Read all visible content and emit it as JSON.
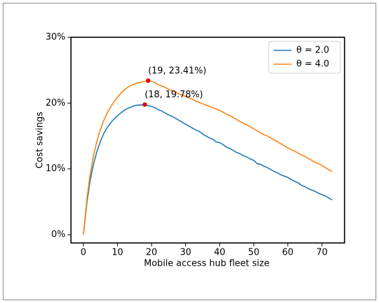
{
  "chart_data": {
    "type": "line",
    "x_label": "Mobile access hub fleet size",
    "y_label": "Cost savings",
    "x": [
      0,
      1,
      2,
      3,
      4,
      5,
      6,
      7,
      8,
      9,
      10,
      11,
      12,
      13,
      14,
      15,
      16,
      17,
      18,
      19,
      20,
      21,
      22,
      23,
      24,
      25,
      26,
      27,
      28,
      29,
      30,
      31,
      32,
      33,
      34,
      35,
      36,
      37,
      38,
      39,
      40,
      41,
      42,
      43,
      44,
      45,
      46,
      47,
      48,
      49,
      50,
      51,
      52,
      53,
      54,
      55,
      56,
      57,
      58,
      59,
      60,
      61,
      62,
      63,
      64,
      65,
      66,
      67,
      68,
      69,
      70,
      71,
      72,
      73
    ],
    "series": [
      {
        "name": "θ = 2.0",
        "color": "#1f77b4",
        "values": [
          0,
          4.8,
          8.3,
          10.8,
          12.7,
          14.2,
          15.4,
          16.3,
          17.0,
          17.6,
          18.1,
          18.5,
          18.9,
          19.2,
          19.4,
          19.6,
          19.7,
          19.7,
          19.78,
          19.6,
          19.5,
          19.3,
          19.0,
          18.8,
          18.5,
          18.2,
          18.0,
          17.7,
          17.4,
          17.1,
          16.8,
          16.5,
          16.2,
          15.9,
          15.7,
          15.3,
          15.0,
          14.7,
          14.5,
          14.1,
          14.0,
          13.7,
          13.3,
          13.1,
          12.8,
          12.5,
          12.3,
          12.0,
          11.8,
          11.5,
          11.3,
          10.8,
          10.7,
          10.4,
          10.2,
          9.9,
          9.6,
          9.4,
          9.1,
          8.9,
          8.7,
          8.4,
          8.1,
          7.9,
          7.5,
          7.3,
          7.0,
          6.8,
          6.6,
          6.3,
          6.1,
          5.9,
          5.6,
          5.3
        ]
      },
      {
        "name": "θ = 4.0",
        "color": "#ff7f0e",
        "values": [
          0,
          5.3,
          9.2,
          12.1,
          14.3,
          16.0,
          17.4,
          18.5,
          19.4,
          20.2,
          20.9,
          21.5,
          22.0,
          22.4,
          22.7,
          22.9,
          23.1,
          23.2,
          23.3,
          23.41,
          23.3,
          23.1,
          22.8,
          22.6,
          22.4,
          22.1,
          21.9,
          21.7,
          21.4,
          21.2,
          21.0,
          20.8,
          20.6,
          20.3,
          20.1,
          19.9,
          19.7,
          19.5,
          19.3,
          19.1,
          18.9,
          18.6,
          18.3,
          18.1,
          17.8,
          17.5,
          17.2,
          16.9,
          16.7,
          16.4,
          16.1,
          15.8,
          15.5,
          15.2,
          15.0,
          14.7,
          14.4,
          14.1,
          13.8,
          13.5,
          13.2,
          12.9,
          12.7,
          12.4,
          12.1,
          11.9,
          11.6,
          11.3,
          11.0,
          10.8,
          10.5,
          10.2,
          9.9,
          9.6
        ]
      }
    ],
    "annotations": [
      {
        "text": "(19, 23.41%)",
        "x": 19,
        "y": 23.41,
        "color": "#e00000"
      },
      {
        "text": "(18, 19.78%)",
        "x": 18,
        "y": 19.78,
        "color": "#e00000"
      }
    ],
    "xlim": [
      -3.65,
      76.65
    ],
    "xticks": [
      0,
      10,
      20,
      30,
      40,
      50,
      60,
      70
    ],
    "ylim": [
      -1.25,
      30
    ],
    "yticks": [
      {
        "value": 0,
        "label": "0%"
      },
      {
        "value": 10,
        "label": "10%"
      },
      {
        "value": 20,
        "label": "20%"
      },
      {
        "value": 30,
        "label": "30%"
      }
    ],
    "legend": "upper right"
  }
}
